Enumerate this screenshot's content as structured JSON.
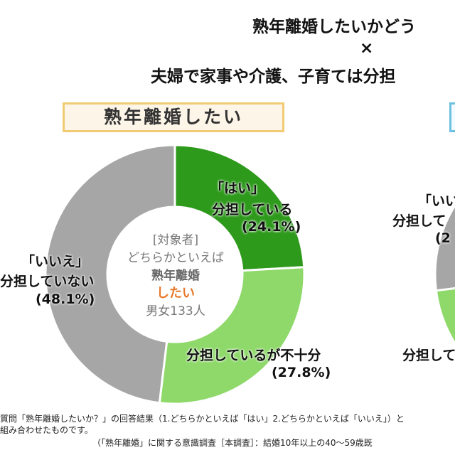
{
  "title_line1": "熟年離婚したいかどう",
  "title_cross": "×",
  "title_line2": "夫婦で家事や介護、子育ては分担",
  "chart_data": [
    {
      "type": "pie",
      "donut": true,
      "title": "熟年離婚したい",
      "center_text": {
        "line1": "[対象者]",
        "line2": "どちらかといえば",
        "line3": "熟年離婚",
        "line4": "したい",
        "line5": "男女133人"
      },
      "slices": [
        {
          "label_line1": "「はい」",
          "label_line2": "分担している",
          "pct_label": "(24.1%)",
          "value": 24.1,
          "color": "#2e9a1c"
        },
        {
          "label_line1": "分担しているが不十分",
          "pct_label": "(27.8%)",
          "value": 27.8,
          "color": "#8ed96a"
        },
        {
          "label_line1": "「いいえ」",
          "label_line2": "分担していない",
          "pct_label": "(48.1%)",
          "value": 48.1,
          "color": "#a6a6a6"
        }
      ]
    },
    {
      "type": "pie",
      "donut": true,
      "partial": true,
      "labels_visible": {
        "a1": "「いい",
        "a2": "分担して",
        "a3": "(2",
        "b1": "分担して"
      },
      "colors": {
        "gray": "#a6a6a6",
        "light_green": "#8ed96a"
      }
    }
  ],
  "footnote_line1": "質問「熟年離婚したいか？」の回答結果（1.どちらかといえば「はい」2.どちらかといえば「いいえ」）と",
  "footnote_line2": "組み合わせたものです。",
  "source": "（「熟年離婚」に関する意識調査［本調査］：結婚10年以上の40～59歳既"
}
